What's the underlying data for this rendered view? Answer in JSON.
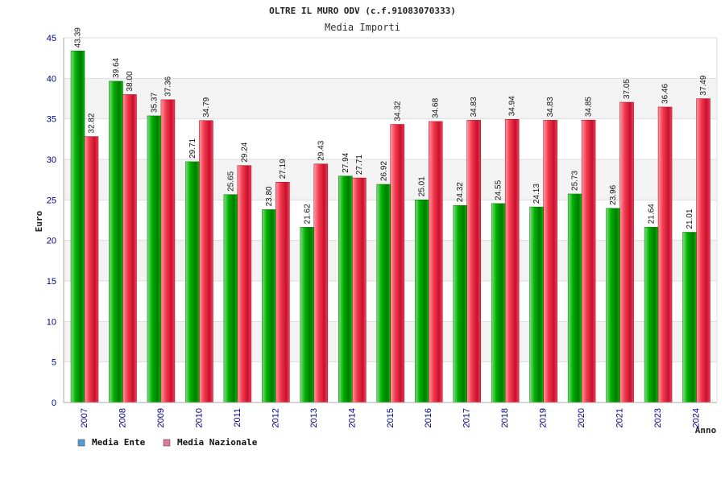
{
  "chart_data": {
    "type": "bar",
    "title": "OLTRE IL MURO ODV (c.f.91083070333)",
    "subtitle": "Media Importi",
    "xlabel": "Anno",
    "ylabel": "Euro",
    "ylim": [
      0,
      45
    ],
    "yticks": [
      "0",
      "5",
      "10",
      "15",
      "20",
      "25",
      "30",
      "35",
      "40",
      "45"
    ],
    "categories": [
      "2007",
      "2008",
      "2009",
      "2010",
      "2011",
      "2012",
      "2013",
      "2014",
      "2015",
      "2016",
      "2017",
      "2018",
      "2019",
      "2020",
      "2021",
      "2023",
      "2024"
    ],
    "series": [
      {
        "name": "Media Ente",
        "color": "#009900",
        "legend_color": "#5b9bd5",
        "values": [
          43.39,
          39.64,
          35.37,
          29.71,
          25.65,
          23.8,
          21.62,
          27.94,
          26.92,
          25.01,
          24.32,
          24.55,
          24.13,
          25.73,
          23.96,
          21.64,
          21.01
        ],
        "labels": [
          "43.39",
          "39.64",
          "35.37",
          "29.71",
          "25.65",
          "23.80",
          "21.62",
          "27.94",
          "26.92",
          "25.01",
          "24.32",
          "24.55",
          "24.13",
          "25.73",
          "23.96",
          "21.64",
          "21.01"
        ]
      },
      {
        "name": "Media Nazionale",
        "color": "#ee2233",
        "legend_color": "#e07aa0",
        "values": [
          32.82,
          38.0,
          37.36,
          34.79,
          29.24,
          27.19,
          29.43,
          27.71,
          34.32,
          34.68,
          34.83,
          34.94,
          34.83,
          34.85,
          37.05,
          36.46,
          37.49
        ],
        "labels": [
          "32.82",
          "38.00",
          "37.36",
          "34.79",
          "29.24",
          "27.19",
          "29.43",
          "27.71",
          "34.32",
          "34.68",
          "34.83",
          "34.94",
          "34.83",
          "34.85",
          "37.05",
          "36.46",
          "37.49"
        ]
      }
    ],
    "grid": true,
    "legend_position": "bottom-left"
  }
}
